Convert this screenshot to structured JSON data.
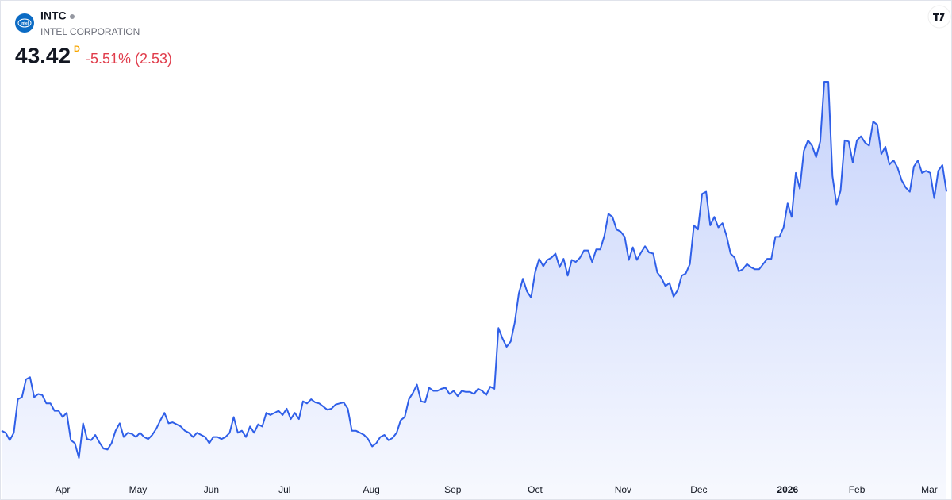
{
  "header": {
    "logo_text": "intel",
    "symbol": "INTC",
    "company": "INTEL CORPORATION",
    "price": "43.42",
    "interval": "D",
    "change": "-5.51% (2.53)"
  },
  "chart_data": {
    "type": "area",
    "color": "#2f5fe8",
    "values": [
      20.6,
      20.4,
      19.7,
      20.4,
      23.6,
      23.8,
      25.5,
      25.7,
      23.8,
      24.1,
      24.0,
      23.2,
      23.2,
      22.5,
      22.5,
      21.9,
      22.3,
      19.7,
      19.4,
      18.0,
      21.3,
      19.8,
      19.7,
      20.2,
      19.5,
      18.9,
      18.8,
      19.4,
      20.6,
      21.3,
      20.0,
      20.4,
      20.3,
      20.0,
      20.4,
      20.0,
      19.8,
      20.2,
      20.8,
      21.6,
      22.3,
      21.3,
      21.4,
      21.2,
      21.0,
      20.6,
      20.4,
      20.0,
      20.4,
      20.2,
      20.0,
      19.4,
      20.0,
      20.0,
      19.8,
      20.0,
      20.4,
      21.9,
      20.4,
      20.6,
      20.0,
      21.0,
      20.4,
      21.2,
      21.0,
      22.3,
      22.1,
      22.3,
      22.5,
      22.1,
      22.7,
      21.7,
      22.3,
      21.7,
      23.4,
      23.2,
      23.6,
      23.3,
      23.2,
      22.9,
      22.6,
      22.7,
      23.1,
      23.2,
      23.3,
      22.7,
      20.6,
      20.6,
      20.4,
      20.2,
      19.8,
      19.1,
      19.4,
      20.0,
      20.2,
      19.7,
      19.9,
      20.4,
      21.6,
      21.9,
      23.6,
      24.2,
      25.0,
      23.4,
      23.3,
      24.7,
      24.4,
      24.4,
      24.6,
      24.7,
      24.1,
      24.4,
      23.9,
      24.4,
      24.3,
      24.3,
      24.1,
      24.6,
      24.4,
      24.0,
      24.8,
      24.6,
      30.4,
      29.4,
      28.6,
      29.1,
      30.9,
      33.7,
      35.1,
      33.9,
      33.3,
      35.7,
      37.0,
      36.3,
      36.9,
      37.1,
      37.5,
      36.2,
      37.0,
      35.4,
      36.9,
      36.7,
      37.1,
      37.8,
      37.8,
      36.7,
      37.9,
      37.9,
      39.2,
      41.3,
      41.0,
      39.8,
      39.6,
      39.1,
      36.9,
      38.1,
      36.9,
      37.6,
      38.2,
      37.6,
      37.5,
      35.7,
      35.2,
      34.4,
      34.7,
      33.4,
      34.0,
      35.4,
      35.6,
      36.5,
      40.2,
      39.8,
      43.2,
      43.4,
      40.2,
      41.0,
      40.0,
      40.4,
      39.2,
      37.5,
      37.1,
      35.8,
      36.0,
      36.5,
      36.2,
      36.0,
      36.0,
      36.5,
      37.0,
      37.0,
      39.1,
      39.1,
      40.0,
      42.3,
      41.0,
      45.2,
      43.7,
      47.3,
      48.3,
      47.8,
      46.7,
      48.2,
      53.9,
      53.9,
      44.9,
      42.2,
      43.5,
      48.3,
      48.2,
      46.2,
      48.3,
      48.7,
      48.1,
      47.8,
      50.1,
      49.8,
      47.0,
      47.7,
      46.0,
      46.4,
      45.7,
      44.5,
      43.8,
      43.4,
      45.8,
      46.4,
      45.2,
      45.4,
      45.2,
      42.8,
      45.4,
      45.95,
      43.42
    ],
    "xticks": [
      {
        "value": 15,
        "label": "Apr"
      },
      {
        "value": 33.5,
        "label": "May"
      },
      {
        "value": 51.5,
        "label": "Jun"
      },
      {
        "value": 69.5,
        "label": "Jul"
      },
      {
        "value": 90.8,
        "label": "Aug"
      },
      {
        "value": 110.8,
        "label": "Sep"
      },
      {
        "value": 131,
        "label": "Oct"
      },
      {
        "value": 152.6,
        "label": "Nov"
      },
      {
        "value": 171.2,
        "label": "Dec"
      },
      {
        "value": 193,
        "label": "2026",
        "bold": true
      },
      {
        "value": 210,
        "label": "Feb"
      },
      {
        "value": 227.8,
        "label": "Mar"
      }
    ]
  }
}
